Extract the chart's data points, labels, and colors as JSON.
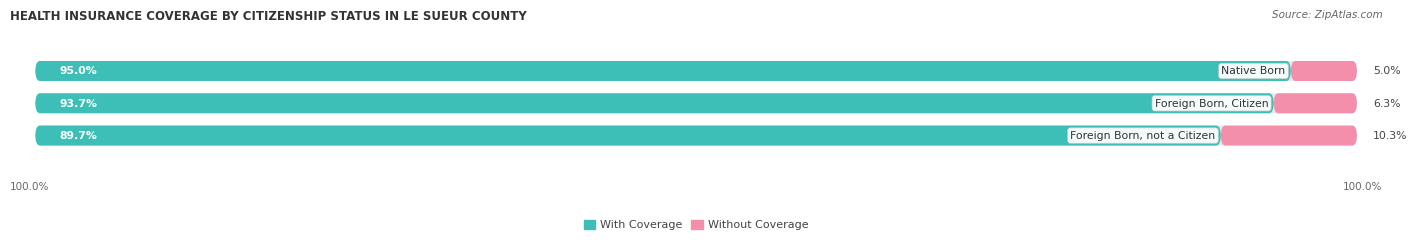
{
  "title": "HEALTH INSURANCE COVERAGE BY CITIZENSHIP STATUS IN LE SUEUR COUNTY",
  "source": "Source: ZipAtlas.com",
  "categories": [
    "Native Born",
    "Foreign Born, Citizen",
    "Foreign Born, not a Citizen"
  ],
  "with_coverage": [
    95.0,
    93.7,
    89.7
  ],
  "without_coverage": [
    5.0,
    6.3,
    10.3
  ],
  "color_with": "#3DBFB8",
  "color_without": "#F48FAB",
  "bg_bar": "#E8E8E8",
  "title_fontsize": 8.5,
  "label_fontsize": 7.8,
  "pct_fontsize": 7.8,
  "tick_fontsize": 7.5,
  "legend_fontsize": 8.0,
  "source_fontsize": 7.5,
  "right_tick_label": "100.0%",
  "left_tick_label": "100.0%"
}
